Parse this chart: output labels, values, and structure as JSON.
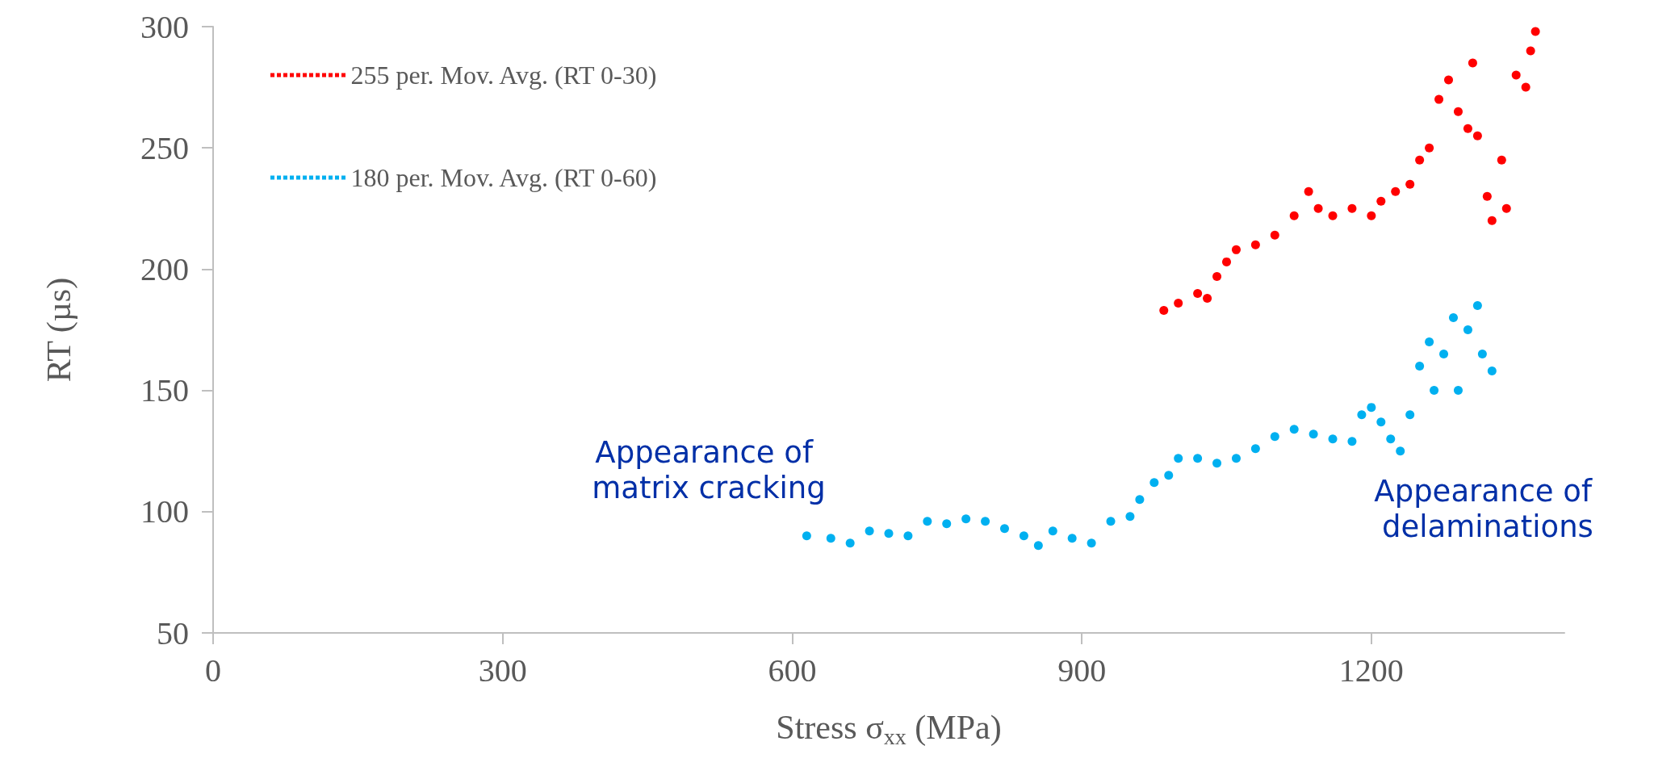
{
  "chart_data": {
    "type": "scatter",
    "xlabel": "Stress σ$_{xx}$ (MPa)",
    "ylabel": "RT (µs)",
    "xlim": [
      0,
      1400
    ],
    "xticks": [
      0,
      300,
      600,
      900,
      1200
    ],
    "ylim": [
      50,
      300
    ],
    "yticks": [
      50,
      100,
      150,
      200,
      250,
      300
    ],
    "grid": false,
    "legend": "top left",
    "marker": "circle",
    "series": [
      {
        "name": "255 per. Mov. Avg. (RT 0-30)",
        "color": "#ff0000",
        "x": [
          985,
          1000,
          1020,
          1030,
          1040,
          1050,
          1060,
          1080,
          1100,
          1120,
          1135,
          1145,
          1160,
          1180,
          1200,
          1210,
          1225,
          1240,
          1250,
          1260,
          1270,
          1280,
          1290,
          1300,
          1305,
          1310,
          1320,
          1325,
          1335,
          1340,
          1350,
          1360,
          1365,
          1370
        ],
        "values": [
          183,
          186,
          190,
          188,
          197,
          203,
          208,
          210,
          214,
          222,
          232,
          225,
          222,
          225,
          222,
          228,
          232,
          235,
          245,
          250,
          270,
          278,
          265,
          258,
          285,
          255,
          230,
          220,
          245,
          225,
          280,
          275,
          290,
          298
        ]
      },
      {
        "name": "180 per. Mov. Avg. (RT 0-60)",
        "color": "#00b0f0",
        "x": [
          615,
          640,
          660,
          680,
          700,
          720,
          740,
          760,
          780,
          800,
          820,
          840,
          855,
          870,
          890,
          910,
          930,
          950,
          960,
          975,
          990,
          1000,
          1020,
          1040,
          1060,
          1080,
          1100,
          1120,
          1140,
          1160,
          1180,
          1190,
          1200,
          1210,
          1220,
          1230,
          1240,
          1250,
          1260,
          1265,
          1275,
          1285,
          1290,
          1300,
          1310,
          1315,
          1325
        ],
        "values": [
          90,
          89,
          87,
          92,
          91,
          90,
          96,
          95,
          97,
          96,
          93,
          90,
          86,
          92,
          89,
          87,
          96,
          98,
          105,
          112,
          115,
          122,
          122,
          120,
          122,
          126,
          131,
          134,
          132,
          130,
          129,
          140,
          143,
          137,
          130,
          125,
          140,
          160,
          170,
          150,
          165,
          180,
          150,
          175,
          185,
          165,
          158
        ]
      }
    ],
    "annotations": [
      "Appearance of matrix cracking",
      "Appearance of delaminations"
    ]
  }
}
